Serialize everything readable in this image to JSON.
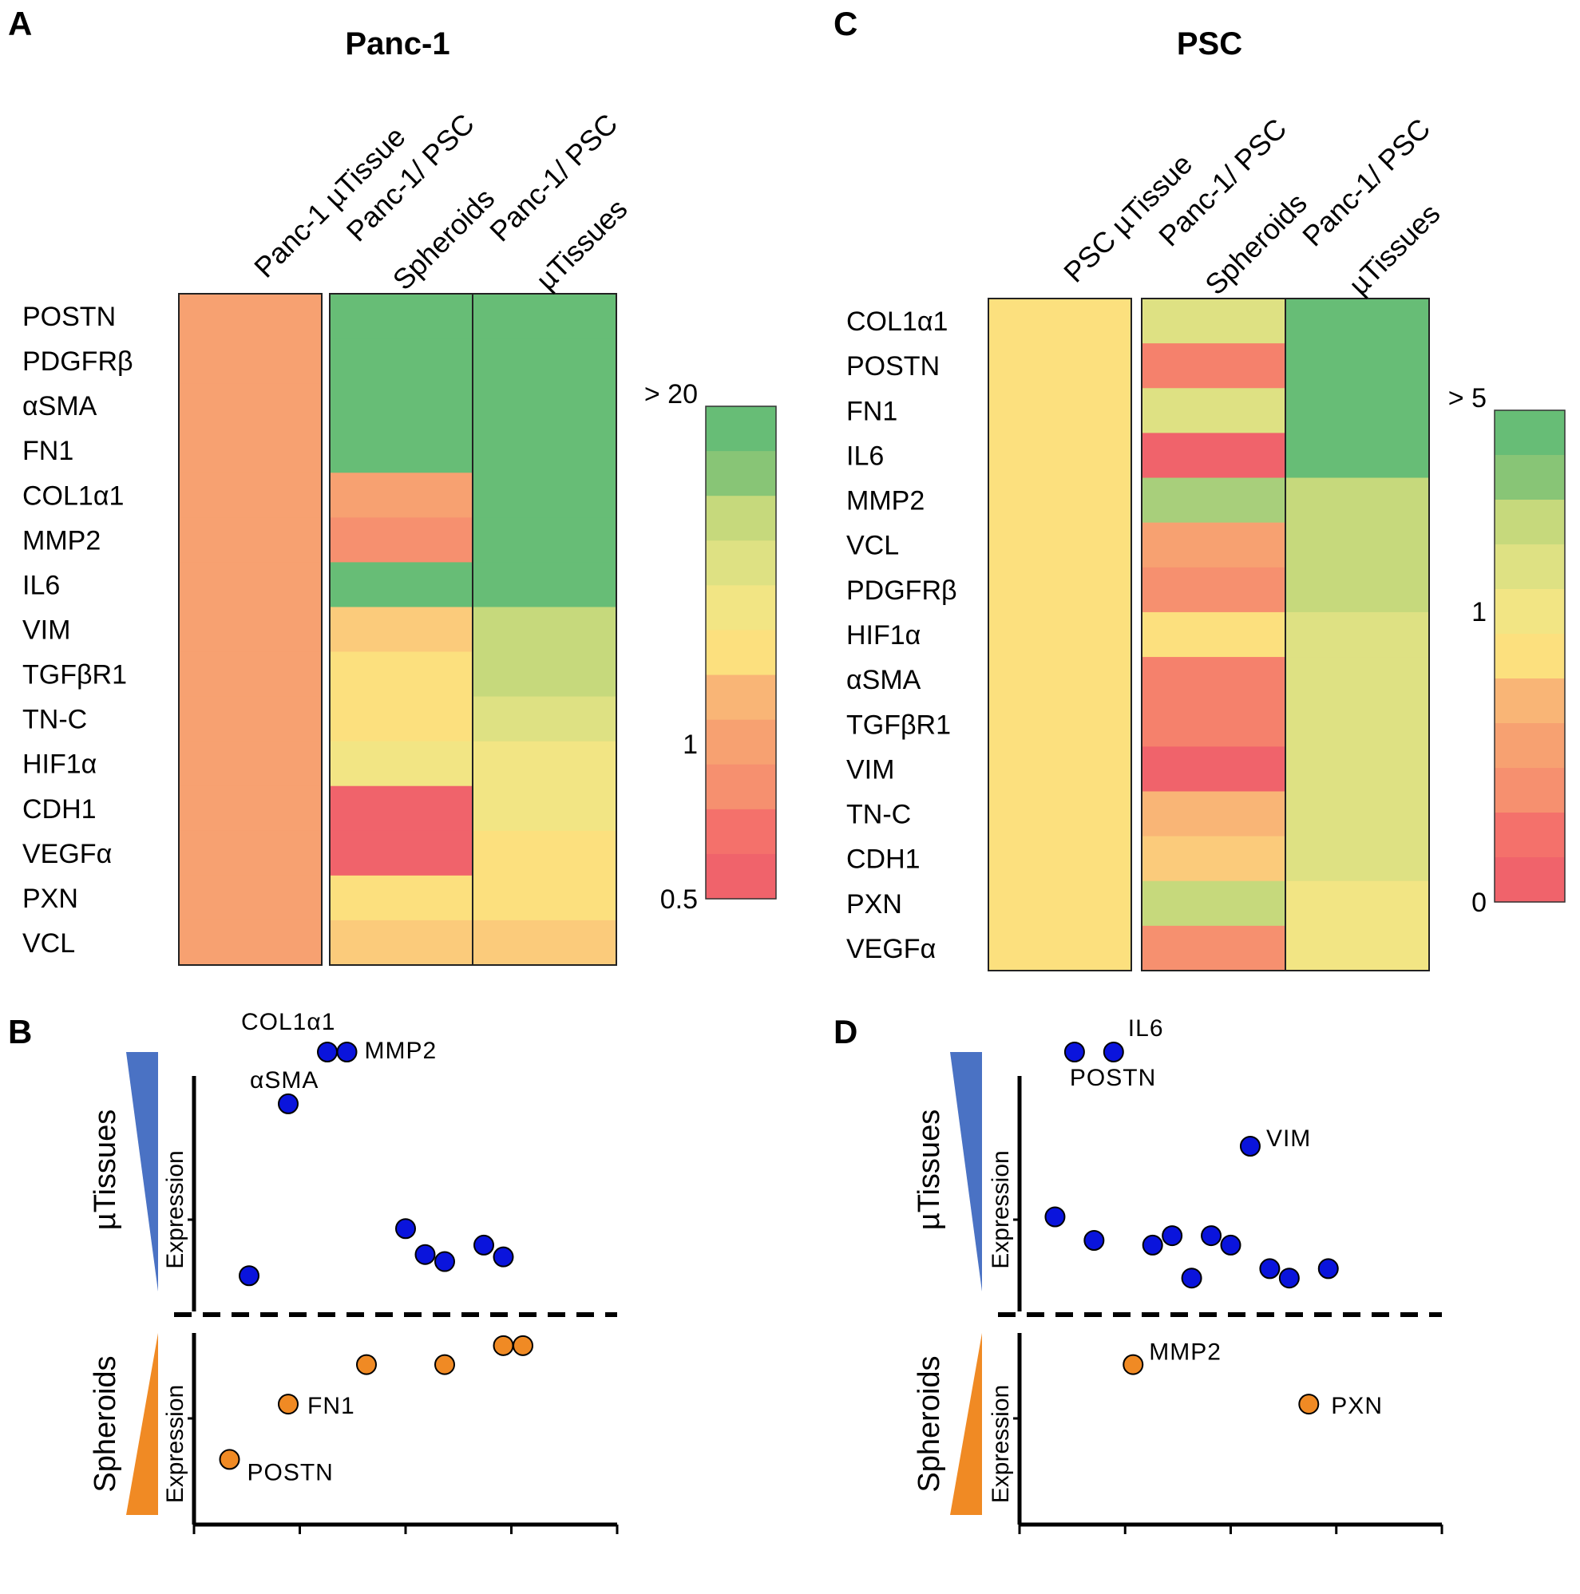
{
  "colors": {
    "scale": [
      "#f0636b",
      "#f4716b",
      "#f5816c",
      "#f6906f",
      "#f7a171",
      "#f9b576",
      "#fbcb7b",
      "#fce07e",
      "#f2e584",
      "#dee183",
      "#c6d97c",
      "#a8cf7b",
      "#88c576",
      "#67bd76"
    ],
    "up": "#0a14dc",
    "down": "#f08a24",
    "triangle_up": "#4a72c4",
    "triangle_down": "#f08a24"
  },
  "chart_data": [
    {
      "panel": "A",
      "type": "heatmap",
      "title": "Panc-1",
      "columns": [
        [
          "Panc-1 µTissue"
        ],
        [
          "Panc-1/ PSC",
          "Spheroids"
        ],
        [
          "Panc-1/ PSC",
          "µTissues"
        ]
      ],
      "genes": [
        "POSTN",
        "PDGFRβ",
        "αSMA",
        "FN1",
        "COL1α1",
        "MMP2",
        "IL6",
        "VIM",
        "TGFβR1",
        "TN-C",
        "HIF1α",
        "CDH1",
        "VEGFα",
        "PXN",
        "VCL"
      ],
      "values": [
        [
          4,
          13,
          13
        ],
        [
          4,
          13,
          13
        ],
        [
          4,
          13,
          13
        ],
        [
          4,
          13,
          13
        ],
        [
          4,
          4,
          13
        ],
        [
          4,
          3,
          13
        ],
        [
          4,
          13,
          13
        ],
        [
          4,
          6,
          10
        ],
        [
          4,
          7,
          10
        ],
        [
          4,
          7,
          9
        ],
        [
          4,
          8,
          8
        ],
        [
          4,
          0,
          8
        ],
        [
          4,
          0,
          7
        ],
        [
          4,
          7,
          7
        ],
        [
          4,
          6,
          6
        ]
      ],
      "legend": {
        "labels": [
          "> 20",
          "1",
          "0.5"
        ],
        "steps": 11
      }
    },
    {
      "panel": "C",
      "type": "heatmap",
      "title": "PSC",
      "columns": [
        [
          "PSC µTissue"
        ],
        [
          "Panc-1/ PSC",
          "Spheroids"
        ],
        [
          "Panc-1/ PSC",
          "µTissues"
        ]
      ],
      "genes": [
        "COL1α1",
        "POSTN",
        "FN1",
        "IL6",
        "MMP2",
        "VCL",
        "PDGFRβ",
        "HIF1α",
        "αSMA",
        "TGFβR1",
        "VIM",
        "TN-C",
        "CDH1",
        "PXN",
        "VEGFα"
      ],
      "values": [
        [
          7,
          9,
          13
        ],
        [
          7,
          2,
          13
        ],
        [
          7,
          9,
          13
        ],
        [
          7,
          0,
          13
        ],
        [
          7,
          11,
          10
        ],
        [
          7,
          4,
          10
        ],
        [
          7,
          3,
          10
        ],
        [
          7,
          7,
          9
        ],
        [
          7,
          2,
          9
        ],
        [
          7,
          2,
          9
        ],
        [
          7,
          0,
          9
        ],
        [
          7,
          5,
          9
        ],
        [
          7,
          6,
          9
        ],
        [
          7,
          10,
          8
        ],
        [
          7,
          3,
          8
        ]
      ],
      "legend": {
        "labels": [
          "> 5",
          "1",
          "0"
        ],
        "steps": 11
      }
    },
    {
      "panel": "B",
      "type": "scatter",
      "top_label": "µTissues",
      "bottom_label": "Spheroids",
      "axis_label": "Expression",
      "up_points": [
        {
          "x": 1.0,
          "y": 0.05,
          "label": ""
        },
        {
          "x": 2.0,
          "y": 0.78,
          "label": "αSMA"
        },
        {
          "x": 3.0,
          "y": 1.0,
          "label": ""
        },
        {
          "x": 3.5,
          "y": 1.0,
          "label": "MMP2"
        },
        {
          "x": 5.0,
          "y": 0.25,
          "label": ""
        },
        {
          "x": 5.5,
          "y": 0.14,
          "label": ""
        },
        {
          "x": 6.0,
          "y": 0.11,
          "label": ""
        },
        {
          "x": 7.0,
          "y": 0.18,
          "label": ""
        },
        {
          "x": 7.5,
          "y": 0.13,
          "label": ""
        }
      ],
      "up_extra_label": "COL1α1",
      "down_points": [
        {
          "x": 0.5,
          "y": 0.2,
          "label": "POSTN"
        },
        {
          "x": 2.0,
          "y": 0.55,
          "label": "FN1"
        },
        {
          "x": 4.0,
          "y": 0.8,
          "label": ""
        },
        {
          "x": 6.0,
          "y": 0.8,
          "label": ""
        },
        {
          "x": 7.5,
          "y": 0.92,
          "label": ""
        },
        {
          "x": 8.0,
          "y": 0.92,
          "label": ""
        }
      ],
      "x_range": [
        0,
        10
      ]
    },
    {
      "panel": "D",
      "type": "scatter",
      "top_label": "µTissues",
      "bottom_label": "Spheroids",
      "axis_label": "Expression",
      "up_points": [
        {
          "x": 0.5,
          "y": 0.3,
          "label": ""
        },
        {
          "x": 1.0,
          "y": 1.0,
          "label": "POSTN"
        },
        {
          "x": 1.5,
          "y": 0.2,
          "label": ""
        },
        {
          "x": 2.0,
          "y": 1.0,
          "label": "IL6"
        },
        {
          "x": 3.0,
          "y": 0.18,
          "label": ""
        },
        {
          "x": 3.5,
          "y": 0.22,
          "label": ""
        },
        {
          "x": 4.0,
          "y": 0.04,
          "label": ""
        },
        {
          "x": 4.5,
          "y": 0.22,
          "label": ""
        },
        {
          "x": 5.0,
          "y": 0.18,
          "label": ""
        },
        {
          "x": 5.5,
          "y": 0.6,
          "label": "VIM"
        },
        {
          "x": 6.0,
          "y": 0.08,
          "label": ""
        },
        {
          "x": 6.5,
          "y": 0.04,
          "label": ""
        },
        {
          "x": 7.5,
          "y": 0.08,
          "label": ""
        }
      ],
      "down_points": [
        {
          "x": 2.5,
          "y": 0.8,
          "label": "MMP2"
        },
        {
          "x": 7.0,
          "y": 0.55,
          "label": "PXN"
        }
      ],
      "x_range": [
        0,
        10
      ]
    }
  ],
  "panel_letters": [
    "A",
    "B",
    "C",
    "D"
  ]
}
